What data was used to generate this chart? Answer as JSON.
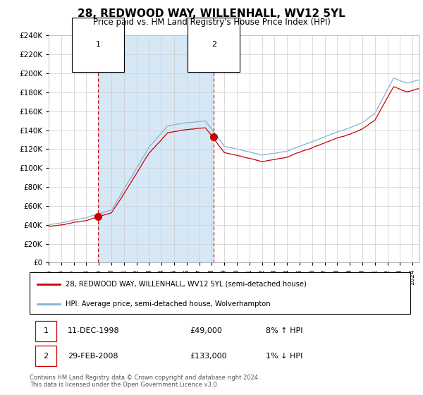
{
  "title": "28, REDWOOD WAY, WILLENHALL, WV12 5YL",
  "subtitle": "Price paid vs. HM Land Registry's House Price Index (HPI)",
  "legend_line1": "28, REDWOOD WAY, WILLENHALL, WV12 5YL (semi-detached house)",
  "legend_line2": "HPI: Average price, semi-detached house, Wolverhampton",
  "footnote": "Contains HM Land Registry data © Crown copyright and database right 2024.\nThis data is licensed under the Open Government Licence v3.0.",
  "sale1_date": "11-DEC-1998",
  "sale1_price": "£49,000",
  "sale1_hpi": "8% ↑ HPI",
  "sale2_date": "29-FEB-2008",
  "sale2_price": "£133,000",
  "sale2_hpi": "1% ↓ HPI",
  "red_color": "#cc0000",
  "blue_color": "#7fb3d3",
  "fill_color": "#d6e8f5",
  "ylim": [
    0,
    240000
  ],
  "ytick_max": 240000,
  "ytick_step": 20000,
  "sale1_year": 1998.94,
  "sale1_price_val": 49000,
  "sale2_year": 2008.17,
  "sale2_price_val": 133000,
  "xstart": 1995,
  "xend": 2024.5
}
